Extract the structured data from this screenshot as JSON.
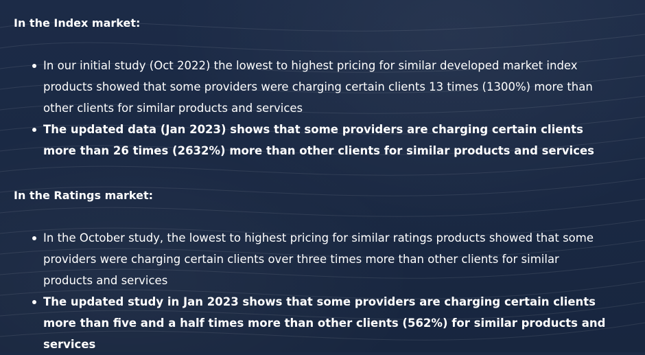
{
  "sections": [
    {
      "heading": "In the Index market:",
      "bullets": [
        "In our initial study (Oct 2022) the lowest to highest pricing for similar developed market index products showed that some providers were charging certain clients 13 times (1300%) more than other clients for similar products and services",
        "The updated data (Jan 2023) shows that some providers are charging certain clients more than 26 times (2632%) more than other clients for similar products and services"
      ]
    },
    {
      "heading": "In the Ratings market:",
      "bullets": [
        "In the October study, the lowest to highest pricing for similar ratings products showed that some providers were charging certain clients over three times more than other clients for similar products and services",
        "The updated study in Jan 2023 shows that some providers are charging certain clients more than five and a half times more than other clients (562%) for similar products and services"
      ]
    }
  ],
  "colors": {
    "background": "#1b2a45",
    "text": "#ffffff"
  }
}
